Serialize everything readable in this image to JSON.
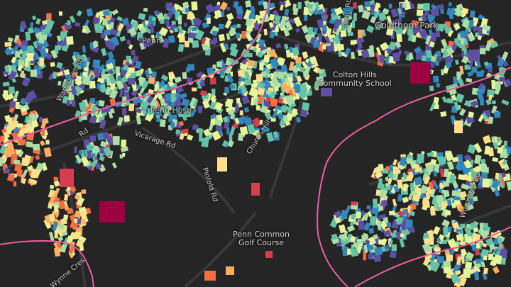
{
  "map": {
    "place_labels": {
      "goldthorn_park": "Goldthorn Park",
      "colton_hills_school_line1": "Colton Hills",
      "colton_hills_school_line2": "Community School",
      "penn_common_line1": "Penn Common",
      "penn_common_line2": "Golf Course",
      "penn_hospital": "Penn Hosp",
      "penn_top": "Penn"
    },
    "road_labels": {
      "warstones_rd": "Warstones Rd",
      "vicarage_rd": "Vicarage Rd",
      "church_hill": "Church Hill",
      "pinfold_rd": "Pinfold Rd",
      "wynne_cres": "Wynne Cres",
      "upper_st": "Penn Rd",
      "penn_road_right": "Worcester Rd",
      "rd_left": "Rd"
    },
    "colors": {
      "background": "#252526",
      "boundary": "#e85f9c",
      "roads": "#3a3a3a",
      "palette": [
        "#5e4fa2",
        "#3288bd",
        "#66c2a5",
        "#abdda4",
        "#e6f598",
        "#fee08b",
        "#fdae61",
        "#f46d43",
        "#d53e4f",
        "#9e0142"
      ]
    }
  }
}
